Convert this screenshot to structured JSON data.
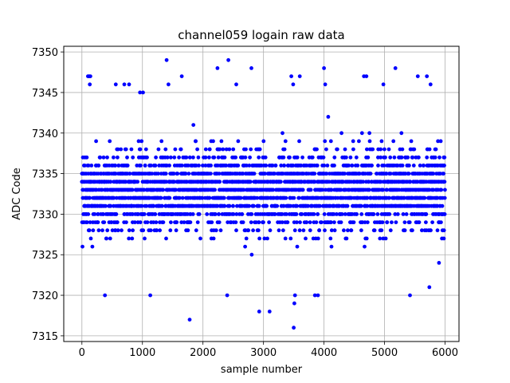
{
  "chart_data": {
    "type": "scatter",
    "title": "channel059 logain raw data",
    "xlabel": "sample number",
    "ylabel": "ADC Code",
    "xlim": [
      -300,
      6230
    ],
    "ylim": [
      7314.3,
      7350.7
    ],
    "xticks": [
      0,
      1000,
      2000,
      3000,
      4000,
      5000,
      6000
    ],
    "yticks": [
      7315,
      7320,
      7325,
      7330,
      7335,
      7340,
      7345,
      7350
    ],
    "grid": true,
    "legend": "none",
    "marker_color": "#0000ff",
    "series": [
      {
        "n_samples": 6000,
        "x_step": 1,
        "integer_values": true,
        "typical_range": [
          7324,
          7342
        ],
        "outliers": [
          {
            "x": 100,
            "y": 7347
          },
          {
            "x": 120,
            "y": 7347
          },
          {
            "x": 140,
            "y": 7347
          },
          {
            "x": 130,
            "y": 7346
          },
          {
            "x": 380,
            "y": 7320
          },
          {
            "x": 560,
            "y": 7346
          },
          {
            "x": 700,
            "y": 7346
          },
          {
            "x": 780,
            "y": 7346
          },
          {
            "x": 960,
            "y": 7345
          },
          {
            "x": 1010,
            "y": 7345
          },
          {
            "x": 1130,
            "y": 7320
          },
          {
            "x": 1400,
            "y": 7349
          },
          {
            "x": 1430,
            "y": 7346
          },
          {
            "x": 1650,
            "y": 7347
          },
          {
            "x": 1780,
            "y": 7317
          },
          {
            "x": 2240,
            "y": 7348
          },
          {
            "x": 2400,
            "y": 7320
          },
          {
            "x": 2420,
            "y": 7349
          },
          {
            "x": 2550,
            "y": 7346
          },
          {
            "x": 2800,
            "y": 7348
          },
          {
            "x": 2930,
            "y": 7318
          },
          {
            "x": 3100,
            "y": 7318
          },
          {
            "x": 3460,
            "y": 7347
          },
          {
            "x": 3490,
            "y": 7346
          },
          {
            "x": 3500,
            "y": 7316
          },
          {
            "x": 3510,
            "y": 7319
          },
          {
            "x": 3520,
            "y": 7320
          },
          {
            "x": 3600,
            "y": 7347
          },
          {
            "x": 3850,
            "y": 7320
          },
          {
            "x": 3900,
            "y": 7320
          },
          {
            "x": 4000,
            "y": 7348
          },
          {
            "x": 4020,
            "y": 7346
          },
          {
            "x": 4660,
            "y": 7347
          },
          {
            "x": 4700,
            "y": 7347
          },
          {
            "x": 4980,
            "y": 7346
          },
          {
            "x": 5180,
            "y": 7348
          },
          {
            "x": 5420,
            "y": 7320
          },
          {
            "x": 5550,
            "y": 7347
          },
          {
            "x": 5700,
            "y": 7347
          },
          {
            "x": 5740,
            "y": 7321
          },
          {
            "x": 5760,
            "y": 7346
          },
          {
            "x": 5900,
            "y": 7324
          }
        ]
      }
    ]
  }
}
